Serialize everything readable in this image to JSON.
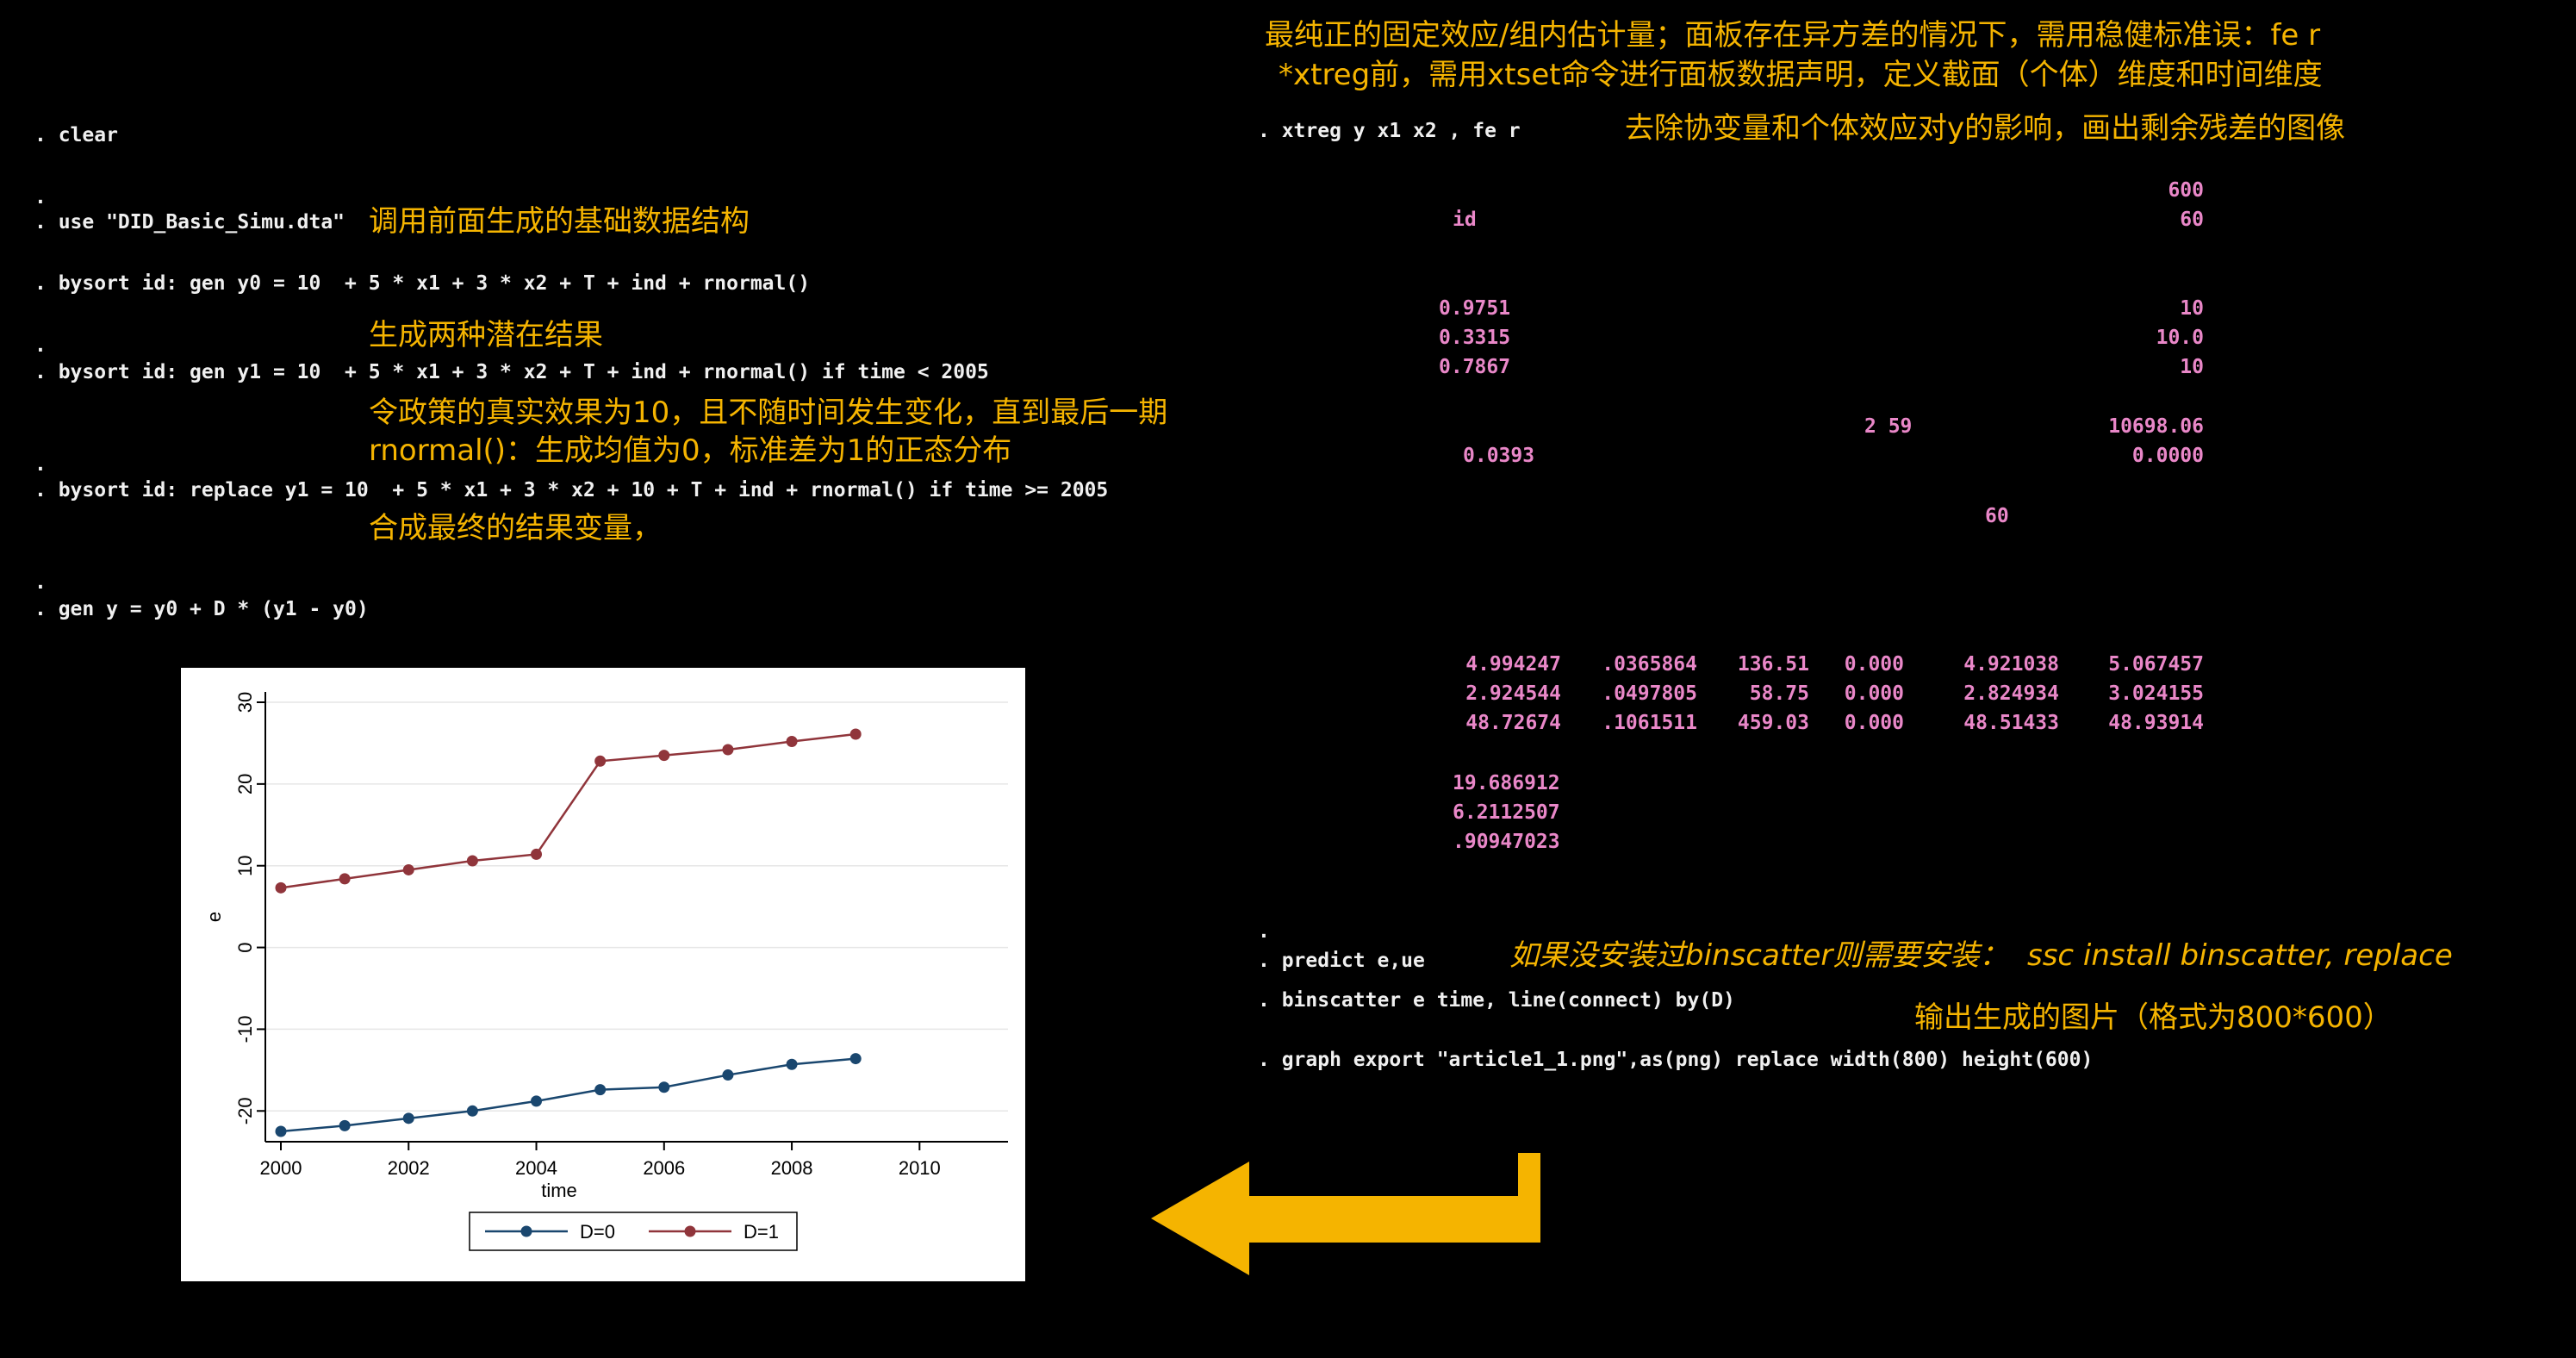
{
  "commands": {
    "clear": ". clear",
    "dot1": ".",
    "use": ". use \"DID_Basic_Simu.dta\"",
    "gen_y0": ". bysort id: gen y0 = 10  + 5 * x1 + 3 * x2 + T + ind + rnormal()",
    "dot2": ".",
    "gen_y1": ". bysort id: gen y1 = 10  + 5 * x1 + 3 * x2 + T + ind + rnormal() if time < 2005",
    "dot3": ".",
    "replace_y1": ". bysort id: replace y1 = 10  + 5 * x1 + 3 * x2 + 10 + T + ind + rnormal() if time >= 2005",
    "dot4": ".",
    "gen_y": ". gen y = y0 + D * (y1 - y0)",
    "xtreg": ". xtreg y x1 x2 , fe r",
    "dot5": ".",
    "predict": ". predict e,ue",
    "binscatter": ". binscatter e time, line(connect) by(D)",
    "export": ". graph export \"article1_1.png\",as(png) replace width(800) height(600)"
  },
  "notes": {
    "use_note": "调用前面生成的基础数据结构",
    "potential": "生成两种潜在结果",
    "policy_effect": "令政策的真实效果为10，且不随时间发生变化，直到最后一期",
    "rnormal": "rnormal()：生成均值为0，标准差为1的正态分布",
    "combine": "合成最终的结果变量，",
    "fe_line1": "最纯正的固定效应/组内估计量；面板存在异方差的情况下，需用稳健标准误：fe r",
    "fe_line2": "*xtreg前，需用xtset命令进行面板数据声明，定义截面（个体）维度和时间维度",
    "residual": "去除协变量和个体效应对y的影响，画出剩余残差的图像",
    "install": "如果没安装过binscatter则需要安装：  ssc install binscatter, replace",
    "export_note": "输出生成的图片（格式为800*600）"
  },
  "output": {
    "obs": "600",
    "id": "id",
    "groups": "60",
    "rsq_within": "0.9751",
    "rsq_between": "0.3315",
    "rsq_overall": "0.7867",
    "g_min": "10",
    "g_avg": "10.0",
    "g_max": "10",
    "f_df": "2 59",
    "f_val": "10698.06",
    "corr": "0.0393",
    "prob_f": "0.0000",
    "clusters": "60",
    "rows": [
      [
        "4.994247",
        ".0365864",
        "136.51",
        "0.000",
        "4.921038",
        "5.067457"
      ],
      [
        "2.924544",
        ".0497805",
        "58.75",
        "0.000",
        "2.824934",
        "3.024155"
      ],
      [
        "48.72674",
        ".1061511",
        "459.03",
        "0.000",
        "48.51433",
        "48.93914"
      ]
    ],
    "sigma_u": "19.686912",
    "sigma_e": "6.2112507",
    "rho": ".90947023"
  },
  "colors": {
    "background": "#000000",
    "command": "#f0f0f0",
    "note": "#f5b400",
    "output": "#e987c8",
    "series_d0": "#1a476f",
    "series_d1": "#90353b",
    "arrow": "#f5b400"
  },
  "chart_data": {
    "type": "line",
    "title": "",
    "xlabel": "time",
    "ylabel": "e",
    "x": [
      2000,
      2001,
      2002,
      2003,
      2004,
      2005,
      2006,
      2007,
      2008,
      2009
    ],
    "xlim": [
      2000,
      2010
    ],
    "ylim": [
      -22.5,
      30
    ],
    "xticks": [
      "2000",
      "2002",
      "2004",
      "2006",
      "2008",
      "2010"
    ],
    "yticks": [
      "-20",
      "-10",
      "0",
      "10",
      "20",
      "30"
    ],
    "grid": true,
    "legend": "bottom",
    "series": [
      {
        "name": "D=0",
        "color": "#1a476f",
        "values": [
          -22.5,
          -21.8,
          -20.9,
          -20.0,
          -18.8,
          -17.4,
          -17.1,
          -15.6,
          -14.3,
          -13.6
        ]
      },
      {
        "name": "D=1",
        "color": "#90353b",
        "values": [
          7.3,
          8.4,
          9.5,
          10.6,
          11.4,
          22.8,
          23.5,
          24.2,
          25.2,
          26.1
        ]
      }
    ]
  }
}
